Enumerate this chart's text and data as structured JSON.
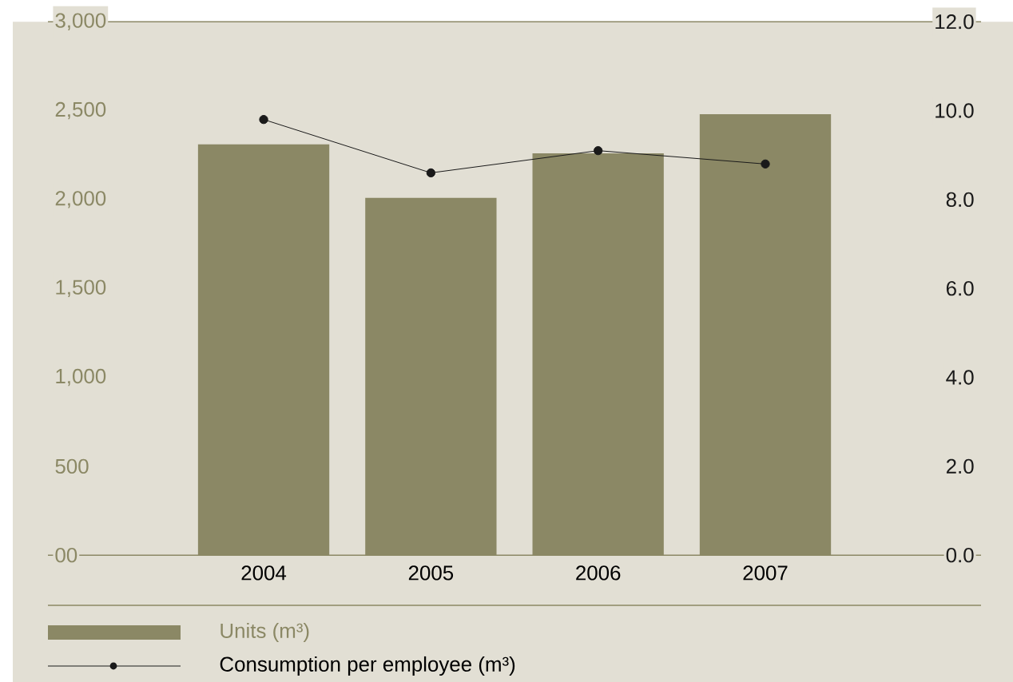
{
  "chart_data": {
    "type": "bar",
    "categories": [
      "2004",
      "2005",
      "2006",
      "2007"
    ],
    "series": [
      {
        "name": "Units (m³)",
        "color": "#8b8865",
        "values": [
          2310,
          2010,
          2260,
          2480
        ]
      },
      {
        "name": "Consumption per employee (m³)",
        "type": "line",
        "axis": "y2",
        "color": "#1a1a1a",
        "marker": "circle",
        "values": [
          9.8,
          8.6,
          9.1,
          8.8
        ]
      }
    ],
    "ylim": [
      0,
      3000
    ],
    "yticks": [
      {
        "value": 0,
        "label": "00"
      },
      {
        "value": 500,
        "label": "500"
      },
      {
        "value": 1000,
        "label": "1,000"
      },
      {
        "value": 1500,
        "label": "1,500"
      },
      {
        "value": 2000,
        "label": "2,000"
      },
      {
        "value": 2500,
        "label": "2,500"
      },
      {
        "value": 3000,
        "label": "3,000"
      }
    ],
    "y2lim": [
      0,
      12
    ],
    "y2ticks": [
      {
        "value": 0,
        "label": "0.0"
      },
      {
        "value": 2,
        "label": "2.0"
      },
      {
        "value": 4,
        "label": "4.0"
      },
      {
        "value": 6,
        "label": "6.0"
      },
      {
        "value": 8,
        "label": "8.0"
      },
      {
        "value": 10,
        "label": "10.0"
      },
      {
        "value": 12,
        "label": "12.0"
      }
    ],
    "legend": "bottom"
  }
}
